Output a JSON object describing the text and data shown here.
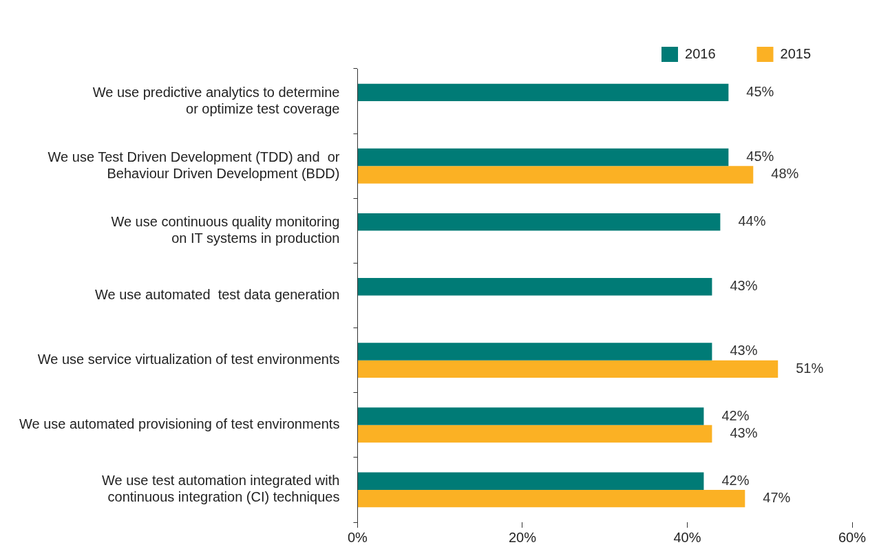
{
  "chart_data": {
    "type": "bar",
    "orientation": "horizontal",
    "categories": [
      "We use predictive analytics to determine\nor optimize test coverage",
      "We use Test Driven Development (TDD) and  or\nBehaviour Driven Development (BDD)",
      "We use continuous quality monitoring\non IT systems in production",
      "We use automated  test data generation",
      "We use service virtualization of test environments",
      "We use automated provisioning of test environments",
      "We use test automation integrated with\ncontinuous integration (CI) techniques"
    ],
    "series": [
      {
        "name": "2016",
        "color": "#007b76",
        "values": [
          45,
          45,
          44,
          43,
          43,
          42,
          42
        ],
        "value_labels": [
          "45%",
          "45%",
          "44%",
          "43%",
          "43%",
          "42%",
          "42%"
        ]
      },
      {
        "name": "2015",
        "color": "#fbb124",
        "values": [
          null,
          48,
          null,
          null,
          51,
          43,
          47
        ],
        "value_labels": [
          null,
          "48%",
          null,
          null,
          "51%",
          "43%",
          "47%"
        ]
      }
    ],
    "xlim": [
      0,
      60
    ],
    "xticks": [
      {
        "value": 0,
        "label": "0%"
      },
      {
        "value": 20,
        "label": "20%"
      },
      {
        "value": 40,
        "label": "40%"
      },
      {
        "value": 60,
        "label": "60%"
      }
    ],
    "grid": false,
    "legend": "top right"
  }
}
